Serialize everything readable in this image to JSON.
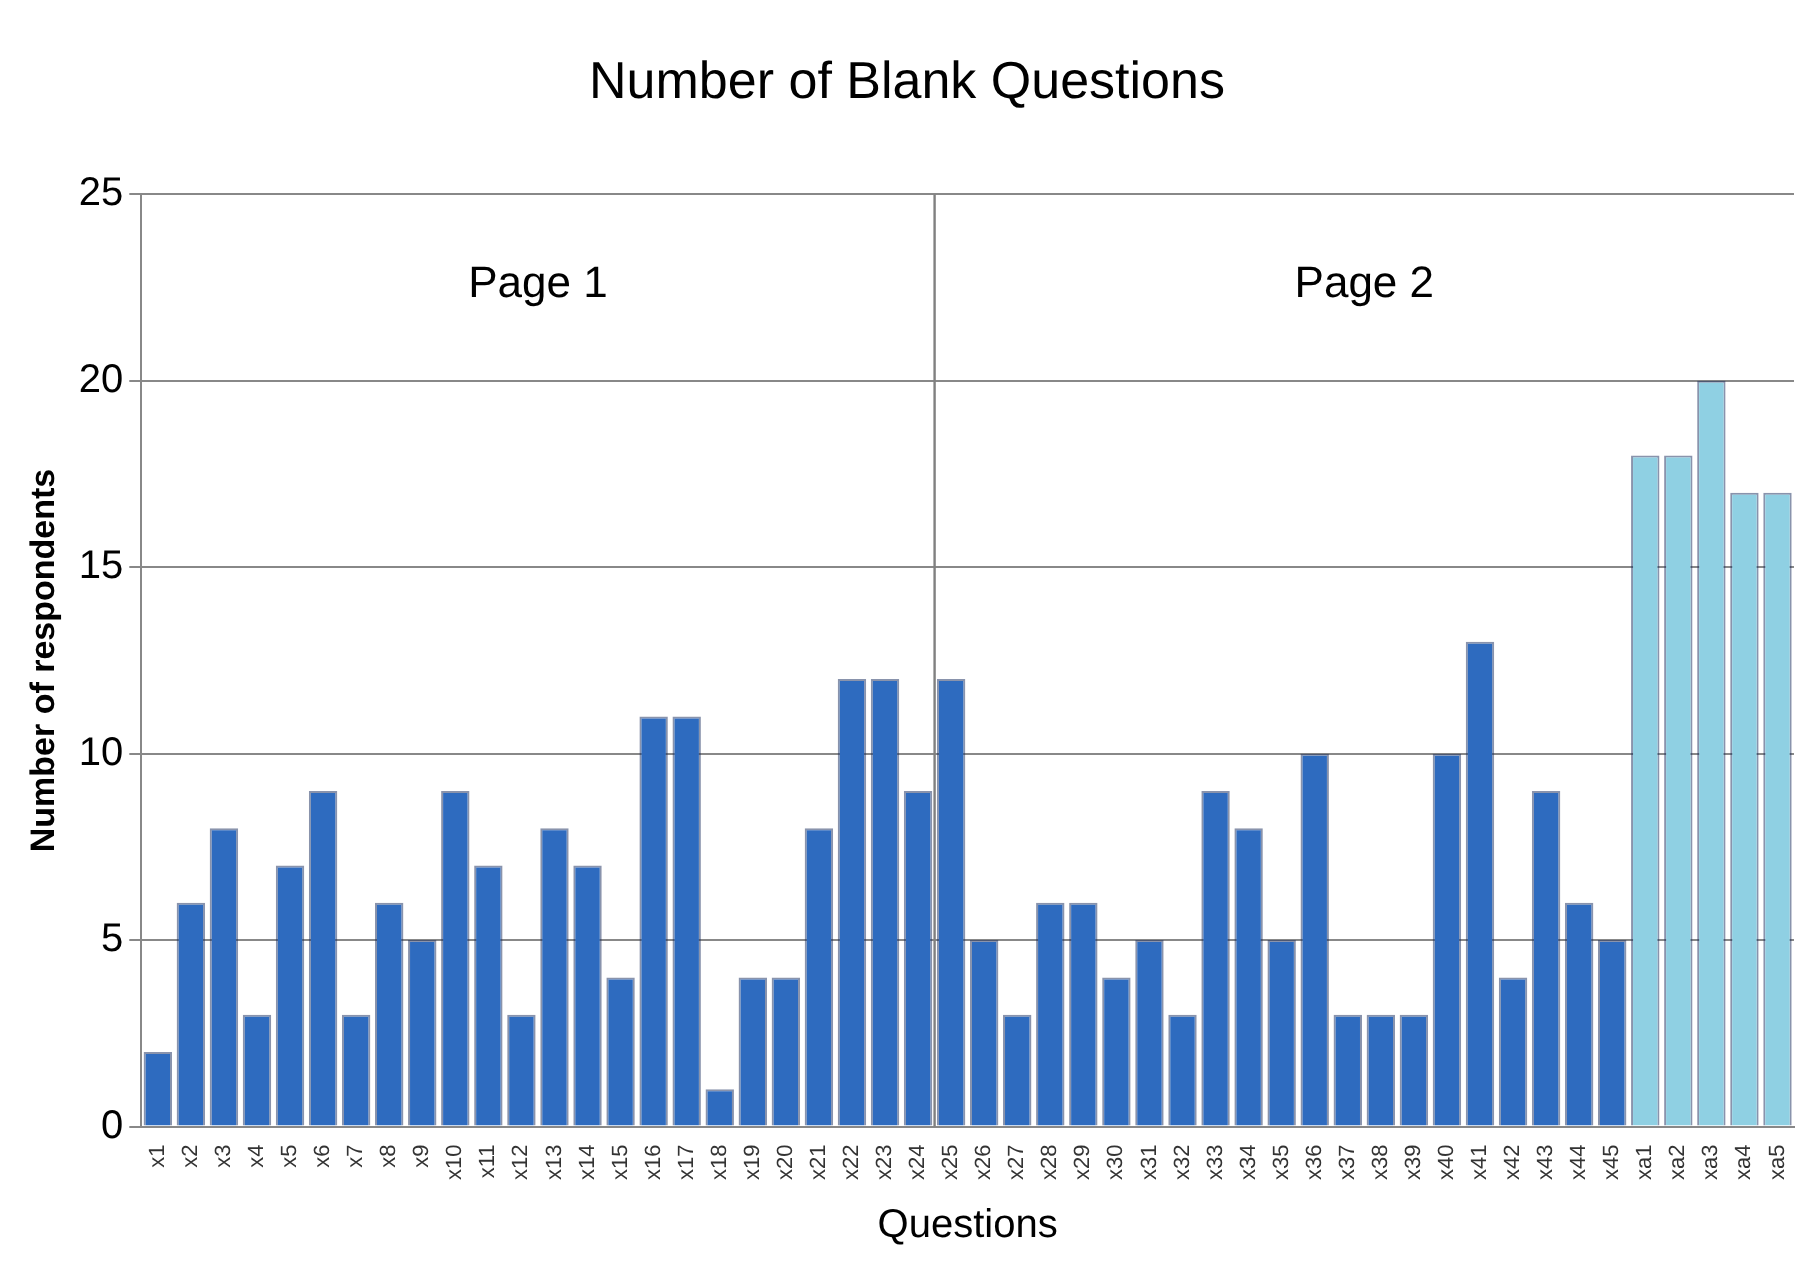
{
  "chart_data": {
    "type": "bar",
    "title": "Number of Blank Questions",
    "xlabel": "Questions",
    "ylabel": "Number of respondents",
    "categories": [
      "x1",
      "x2",
      "x3",
      "x4",
      "x5",
      "x6",
      "x7",
      "x8",
      "x9",
      "x10",
      "x11",
      "x12",
      "x13",
      "x14",
      "x15",
      "x16",
      "x17",
      "x18",
      "x19",
      "x20",
      "x21",
      "x22",
      "x23",
      "x24",
      "x25",
      "x26",
      "x27",
      "x28",
      "x29",
      "x30",
      "x31",
      "x32",
      "x33",
      "x34",
      "x35",
      "x36",
      "x37",
      "x38",
      "x39",
      "x40",
      "x41",
      "x42",
      "x43",
      "x44",
      "x45",
      "xa1",
      "xa2",
      "xa3",
      "xa4",
      "xa5"
    ],
    "values": [
      2,
      6,
      8,
      3,
      7,
      9,
      3,
      6,
      5,
      9,
      7,
      3,
      8,
      7,
      4,
      11,
      11,
      1,
      4,
      4,
      8,
      12,
      12,
      9,
      12,
      5,
      3,
      6,
      6,
      4,
      5,
      3,
      9,
      8,
      5,
      10,
      3,
      3,
      3,
      10,
      13,
      4,
      9,
      6,
      5,
      18,
      18,
      20,
      17,
      17
    ],
    "colors": [
      "#2e6bbf",
      "#2e6bbf",
      "#2e6bbf",
      "#2e6bbf",
      "#2e6bbf",
      "#2e6bbf",
      "#2e6bbf",
      "#2e6bbf",
      "#2e6bbf",
      "#2e6bbf",
      "#2e6bbf",
      "#2e6bbf",
      "#2e6bbf",
      "#2e6bbf",
      "#2e6bbf",
      "#2e6bbf",
      "#2e6bbf",
      "#2e6bbf",
      "#2e6bbf",
      "#2e6bbf",
      "#2e6bbf",
      "#2e6bbf",
      "#2e6bbf",
      "#2e6bbf",
      "#2e6bbf",
      "#2e6bbf",
      "#2e6bbf",
      "#2e6bbf",
      "#2e6bbf",
      "#2e6bbf",
      "#2e6bbf",
      "#2e6bbf",
      "#2e6bbf",
      "#2e6bbf",
      "#2e6bbf",
      "#2e6bbf",
      "#2e6bbf",
      "#2e6bbf",
      "#2e6bbf",
      "#2e6bbf",
      "#2e6bbf",
      "#2e6bbf",
      "#2e6bbf",
      "#2e6bbf",
      "#2e6bbf",
      "#8fd0e3",
      "#8fd0e3",
      "#8fd0e3",
      "#8fd0e3",
      "#8fd0e3"
    ],
    "ylim": [
      0,
      25
    ],
    "yticks": [
      0,
      5,
      10,
      15,
      20,
      25
    ],
    "grid": "y",
    "legend": false,
    "ref_lines": [
      {
        "axis": "x",
        "value": "x25",
        "color": "#808080"
      }
    ],
    "annotations": [
      "Page 1",
      "Page 2"
    ]
  }
}
